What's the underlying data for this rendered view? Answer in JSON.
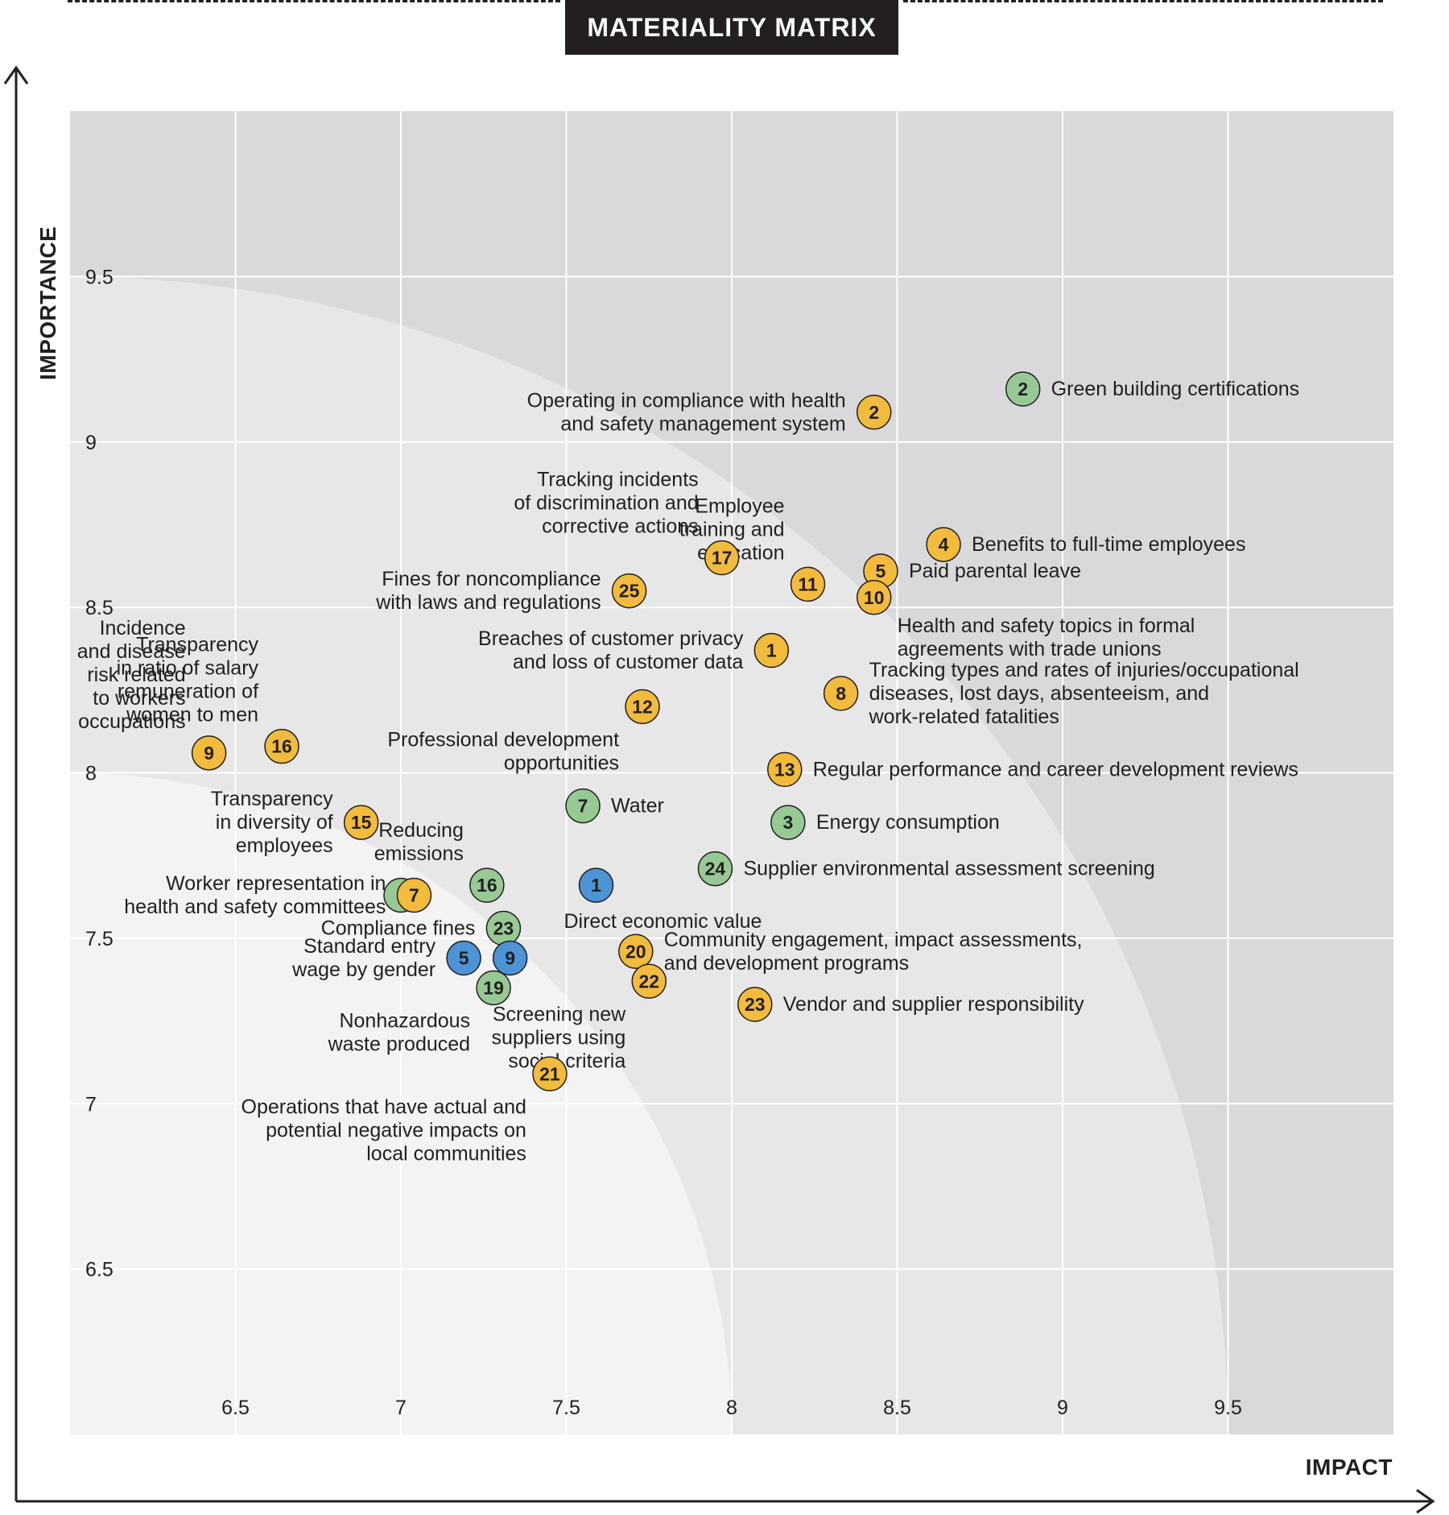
{
  "title": "MATERIALITY MATRIX",
  "colors": {
    "yellow": "#f3bb3d",
    "green": "#96c994",
    "blue": "#4c94d6",
    "band_outer": "#d9d9db",
    "band_mid": "#e7e7e8",
    "band_inner": "#f3f3f3",
    "text": "#231f20"
  },
  "chart_data": {
    "type": "scatter",
    "title": "MATERIALITY MATRIX",
    "xlabel": "IMPACT",
    "ylabel": "IMPORTANCE",
    "xlim": [
      6.0,
      10.0
    ],
    "ylim": [
      6.0,
      10.0
    ],
    "xticks": [
      "6.5",
      "7",
      "7.5",
      "8",
      "8.5",
      "9",
      "9.5"
    ],
    "yticks": [
      "6.5",
      "7",
      "7.5",
      "8",
      "8.5",
      "9",
      "9.5"
    ],
    "grid": true,
    "points": [
      {
        "id": "2",
        "x": 8.88,
        "y": 9.16,
        "color": "green",
        "label": [
          "Green building certifications"
        ],
        "anchor": "right"
      },
      {
        "id": "2",
        "x": 8.43,
        "y": 9.09,
        "color": "yellow",
        "label": [
          "Operating in compliance with health",
          "and safety management system"
        ],
        "anchor": "left"
      },
      {
        "id": "4",
        "x": 8.64,
        "y": 8.69,
        "color": "yellow",
        "label": [
          "Benefits to full-time employees"
        ],
        "anchor": "right"
      },
      {
        "id": "5",
        "x": 8.45,
        "y": 8.61,
        "color": "yellow",
        "label": [
          "Paid parental leave"
        ],
        "anchor": "right"
      },
      {
        "id": "10",
        "x": 8.43,
        "y": 8.53,
        "color": "yellow",
        "label": [
          "Health and safety topics in formal",
          "agreements with trade unions"
        ],
        "anchor": "below-right"
      },
      {
        "id": "11",
        "x": 8.23,
        "y": 8.57,
        "color": "yellow",
        "label": [
          "Employee",
          "training and",
          "education"
        ],
        "anchor": "above-left"
      },
      {
        "id": "17",
        "x": 7.97,
        "y": 8.65,
        "color": "yellow",
        "label": [
          "Tracking incidents",
          "of discrimination and",
          "corrective actions"
        ],
        "anchor": "above-left"
      },
      {
        "id": "25",
        "x": 7.69,
        "y": 8.55,
        "color": "yellow",
        "label": [
          "Fines for noncompliance",
          "with laws and regulations"
        ],
        "anchor": "left"
      },
      {
        "id": "1",
        "x": 8.12,
        "y": 8.37,
        "color": "yellow",
        "label": [
          "Breaches of customer privacy",
          "and loss of customer data"
        ],
        "anchor": "left"
      },
      {
        "id": "8",
        "x": 8.33,
        "y": 8.24,
        "color": "yellow",
        "label": [
          "Tracking types and rates of injuries/occupational",
          "diseases, lost days, absenteeism, and",
          "work-related fatalities"
        ],
        "anchor": "right"
      },
      {
        "id": "12",
        "x": 7.73,
        "y": 8.2,
        "color": "yellow",
        "label": [
          "Professional development",
          "opportunities"
        ],
        "anchor": "below-left"
      },
      {
        "id": "9",
        "x": 6.42,
        "y": 8.06,
        "color": "yellow",
        "label": [
          "Incidence",
          "and disease",
          "risk related",
          "to workers",
          "occupations"
        ],
        "anchor": "above-left"
      },
      {
        "id": "16",
        "x": 6.64,
        "y": 8.08,
        "color": "yellow",
        "label": [
          "Transparency",
          "in ratio of salary",
          "remuneration of",
          "women to men"
        ],
        "anchor": "above-left"
      },
      {
        "id": "13",
        "x": 8.16,
        "y": 8.01,
        "color": "yellow",
        "label": [
          "Regular performance and career development reviews"
        ],
        "anchor": "right"
      },
      {
        "id": "7",
        "x": 7.55,
        "y": 7.9,
        "color": "green",
        "label": [
          "Water"
        ],
        "anchor": "right"
      },
      {
        "id": "15",
        "x": 6.88,
        "y": 7.85,
        "color": "yellow",
        "label": [
          "Transparency",
          "in diversity of",
          "employees"
        ],
        "anchor": "left"
      },
      {
        "id": "3",
        "x": 8.17,
        "y": 7.85,
        "color": "green",
        "label": [
          "Energy consumption"
        ],
        "anchor": "right"
      },
      {
        "id": "24",
        "x": 7.95,
        "y": 7.71,
        "color": "green",
        "label": [
          "Supplier environmental assessment screening"
        ],
        "anchor": "right"
      },
      {
        "id": "",
        "x": 7.0,
        "y": 7.63,
        "color": "green",
        "label": [],
        "anchor": "none"
      },
      {
        "id": "7",
        "x": 7.04,
        "y": 7.63,
        "color": "yellow",
        "label": [
          "Worker representation in",
          "health and safety committees"
        ],
        "anchor": "left"
      },
      {
        "id": "16",
        "x": 7.26,
        "y": 7.66,
        "color": "green",
        "label": [
          "Reducing",
          "emissions"
        ],
        "anchor": "above-left"
      },
      {
        "id": "1",
        "x": 7.59,
        "y": 7.66,
        "color": "blue",
        "label": [
          "Direct economic value"
        ],
        "anchor": "below"
      },
      {
        "id": "23",
        "x": 7.31,
        "y": 7.53,
        "color": "green",
        "label": [
          "Compliance fines"
        ],
        "anchor": "left"
      },
      {
        "id": "20",
        "x": 7.71,
        "y": 7.46,
        "color": "yellow",
        "label": [
          "Community engagement, impact assessments,",
          "and development programs"
        ],
        "anchor": "right"
      },
      {
        "id": "5",
        "x": 7.19,
        "y": 7.44,
        "color": "blue",
        "label": [
          "Standard entry",
          "wage by gender"
        ],
        "anchor": "left"
      },
      {
        "id": "9",
        "x": 7.33,
        "y": 7.44,
        "color": "blue",
        "label": [],
        "anchor": "none"
      },
      {
        "id": "22",
        "x": 7.75,
        "y": 7.37,
        "color": "yellow",
        "label": [
          "Screening new",
          "suppliers using",
          "social criteria"
        ],
        "anchor": "below-left"
      },
      {
        "id": "19",
        "x": 7.28,
        "y": 7.35,
        "color": "green",
        "label": [
          "Nonhazardous",
          "waste produced"
        ],
        "anchor": "below-left"
      },
      {
        "id": "23",
        "x": 8.07,
        "y": 7.3,
        "color": "yellow",
        "label": [
          "Vendor and supplier responsibility"
        ],
        "anchor": "right"
      },
      {
        "id": "21",
        "x": 7.45,
        "y": 7.09,
        "color": "yellow",
        "label": [
          "Operations that have actual and",
          "potential negative impacts on",
          "local communities"
        ],
        "anchor": "below-left"
      }
    ]
  }
}
